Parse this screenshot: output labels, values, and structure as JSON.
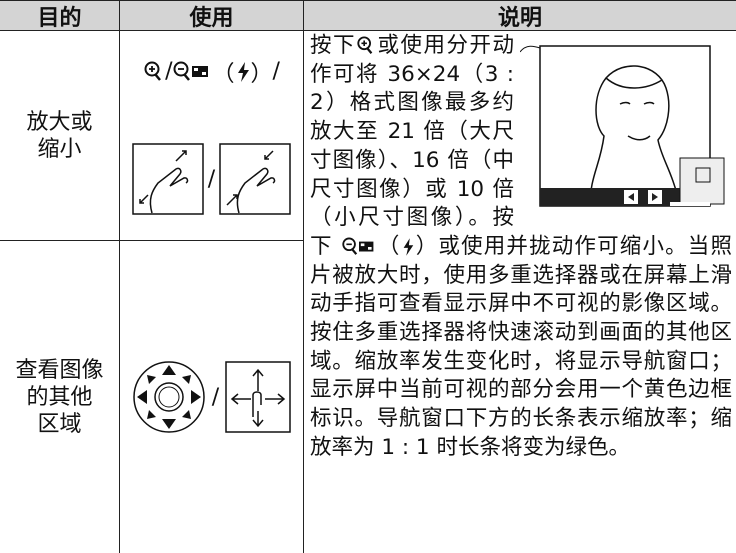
{
  "header": {
    "purpose": "目的",
    "use": "使用",
    "description": "说明"
  },
  "rows": [
    {
      "purpose": [
        "放大或",
        "缩小"
      ],
      "use": [
        "/",
        "（",
        "）",
        "/",
        "/"
      ]
    },
    {
      "purpose": [
        "查看图像",
        "的其他",
        "区域"
      ],
      "use": [
        "/"
      ]
    }
  ],
  "description": [
    "按下",
    "或使用分开动作可将 36×24（3 : 2）格式图像最多约放大至 21 倍（大尺寸图像）、16 倍（中尺寸图像）或 10 倍（小尺寸图像）。按下 ",
    "（",
    "）或使用并拢动作可缩小。当照片被放大时，使用多重选择器或在屏幕上滑动手指可查看显示屏中不可视的影像区域。按住多重选择器将快速滚动到画面的其他区域。缩放率发生变化时，将显示导航窗口；显示屏中当前可视的部分会用一个黄色边框标识。导航窗口下方的长条表示缩放率；缩放率为 1 : 1 时长条将变为绿色。"
  ]
}
